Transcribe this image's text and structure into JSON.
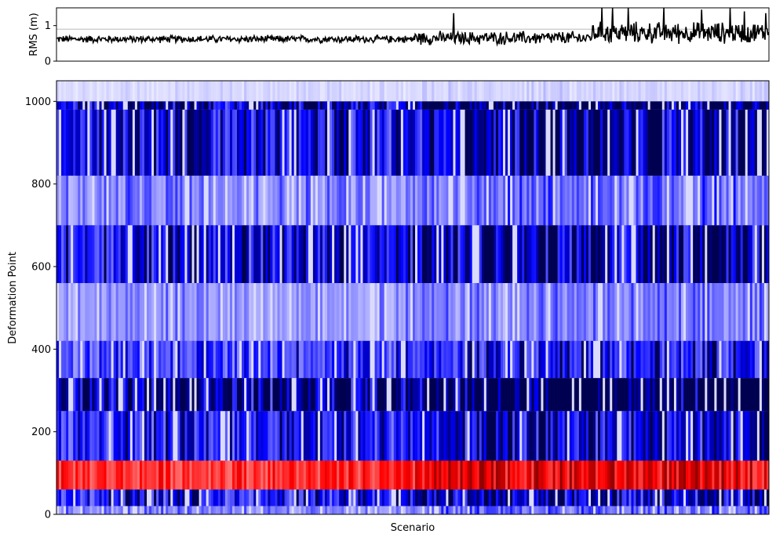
{
  "chart_data": [
    {
      "type": "line",
      "ylabel": "RMS (m)",
      "xlabel": "",
      "ylim": [
        0,
        1.5
      ],
      "yticks": [
        {
          "value": 0,
          "label": "0"
        },
        {
          "value": 1,
          "label": "1"
        }
      ],
      "grid_lines": [
        0.9
      ],
      "color": "#000000",
      "series": [
        {
          "x_count": 1000,
          "segments": [
            {
              "from": 0,
              "to": 500,
              "mean": 0.62,
              "spread": 0.12
            },
            {
              "from": 500,
              "to": 750,
              "mean": 0.65,
              "spread": 0.22
            },
            {
              "from": 750,
              "to": 1000,
              "mean": 0.8,
              "spread": 0.35
            }
          ],
          "spikes": [
            {
              "x": 557,
              "y": 1.35
            },
            {
              "x": 765,
              "y": 1.5
            },
            {
              "x": 780,
              "y": 1.5
            },
            {
              "x": 802,
              "y": 1.5
            },
            {
              "x": 852,
              "y": 1.5
            },
            {
              "x": 905,
              "y": 1.45
            },
            {
              "x": 945,
              "y": 1.5
            },
            {
              "x": 965,
              "y": 1.4
            },
            {
              "x": 995,
              "y": 1.35
            }
          ]
        }
      ]
    },
    {
      "type": "heatmap",
      "xlabel": "Scenario",
      "ylabel": "Deformation Point",
      "ylim": [
        0,
        1050
      ],
      "yticks": [
        {
          "value": 0,
          "label": "0"
        },
        {
          "value": 200,
          "label": "200"
        },
        {
          "value": 400,
          "label": "400"
        },
        {
          "value": 600,
          "label": "600"
        },
        {
          "value": 800,
          "label": "800"
        },
        {
          "value": 1000,
          "label": "1000"
        }
      ],
      "colormap": [
        "#000050",
        "#0000ff",
        "#ffffff",
        "#ff0000",
        "#800000"
      ],
      "bands": [
        {
          "from": 1000,
          "to": 1050,
          "value": 0.1
        },
        {
          "from": 980,
          "to": 1000,
          "value": 0.9
        },
        {
          "from": 820,
          "to": 980,
          "value": 0.75
        },
        {
          "from": 700,
          "to": 820,
          "value": 0.35
        },
        {
          "from": 560,
          "to": 700,
          "value": 0.75
        },
        {
          "from": 420,
          "to": 560,
          "value": 0.3
        },
        {
          "from": 330,
          "to": 420,
          "value": 0.55
        },
        {
          "from": 250,
          "to": 330,
          "value": 0.95
        },
        {
          "from": 130,
          "to": 250,
          "value": 0.65
        },
        {
          "from": 60,
          "to": 130,
          "value": -0.6
        },
        {
          "from": 20,
          "to": 60,
          "value": 0.7
        },
        {
          "from": 0,
          "to": 20,
          "value": 0.35
        }
      ]
    }
  ]
}
